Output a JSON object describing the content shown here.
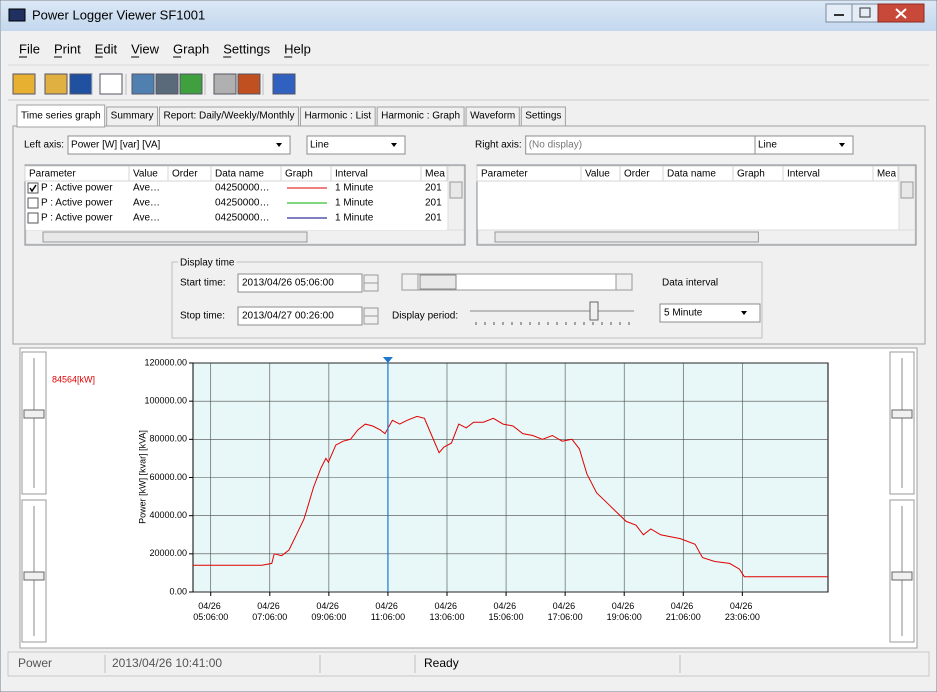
{
  "window": {
    "title": "Power Logger Viewer SF1001"
  },
  "menu": [
    "File",
    "Print",
    "Edit",
    "View",
    "Graph",
    "Settings",
    "Help"
  ],
  "tabs": [
    "Time series graph",
    "Summary",
    "Report: Daily/Weekly/Monthly",
    "Harmonic : List",
    "Harmonic : Graph",
    "Waveform",
    "Settings"
  ],
  "active_tab": 0,
  "left_axis": {
    "label": "Left axis:",
    "select": "Power [W] [var] [VA]",
    "style": "Line"
  },
  "right_axis": {
    "label": "Right axis:",
    "select": "(No display)",
    "style": "Line"
  },
  "left_table": {
    "columns": [
      "Parameter",
      "Value",
      "Order",
      "Data name",
      "Graph",
      "Interval",
      "Mea"
    ],
    "rows": [
      {
        "checked": true,
        "parameter": "P : Active power",
        "value": "Ave…",
        "data_name": "04250000…",
        "color": "#e00000",
        "interval": "1 Minute",
        "mea": "201"
      },
      {
        "checked": false,
        "parameter": "P : Active power",
        "value": "Ave…",
        "data_name": "04250000…",
        "color": "#00b000",
        "interval": "1 Minute",
        "mea": "201"
      },
      {
        "checked": false,
        "parameter": "P : Active power",
        "value": "Ave…",
        "data_name": "04250000…",
        "color": "#000080",
        "interval": "1 Minute",
        "mea": "201"
      }
    ]
  },
  "right_table": {
    "columns": [
      "Parameter",
      "Value",
      "Order",
      "Data name",
      "Graph",
      "Interval",
      "Mea"
    ]
  },
  "display_time": {
    "title": "Display time",
    "start_label": "Start time:",
    "start": "2013/04/26 05:06:00",
    "stop_label": "Stop time:",
    "stop": "2013/04/27 00:26:00",
    "period_label": "Display period:",
    "interval_label": "Data interval",
    "interval": "5 Minute"
  },
  "chart_data": {
    "type": "line",
    "ylabel": "Power [kW] [kvar] [kVA]",
    "color": "#e00000",
    "background": "#e8f8f8",
    "grid": true,
    "xlim": [
      "04/26 04:30:00",
      "04/27 02:00:00"
    ],
    "xticks": [
      "04/26 05:06:00",
      "04/26 07:06:00",
      "04/26 09:06:00",
      "04/26 11:06:00",
      "04/26 13:06:00",
      "04/26 15:06:00",
      "04/26 17:06:00",
      "04/26 19:06:00",
      "04/26 21:06:00",
      "04/26 23:06:00"
    ],
    "ylim": [
      0,
      120000
    ],
    "yticks": [
      {
        "value": 0,
        "label": "0.00"
      },
      {
        "value": 20000,
        "label": "20000.00"
      },
      {
        "value": 40000,
        "label": "40000.00"
      },
      {
        "value": 60000,
        "label": "60000.00"
      },
      {
        "value": 80000,
        "label": "80000.00"
      },
      {
        "value": 100000,
        "label": "100000.00"
      },
      {
        "value": 120000,
        "label": "120000.00"
      }
    ],
    "x": [
      "04/26 04:30:00",
      "04/26 06:50:00",
      "04/26 07:10:00",
      "04/26 07:15:00",
      "04/26 07:30:00",
      "04/26 07:45:00",
      "04/26 08:00:00",
      "04/26 08:15:00",
      "04/26 08:20:00",
      "04/26 08:35:00",
      "04/26 08:50:00",
      "04/26 09:00:00",
      "04/26 09:05:00",
      "04/26 09:20:00",
      "04/26 09:35:00",
      "04/26 09:50:00",
      "04/26 10:05:00",
      "04/26 10:20:00",
      "04/26 10:35:00",
      "04/26 10:50:00",
      "04/26 11:00:00",
      "04/26 11:15:00",
      "04/26 11:30:00",
      "04/26 11:45:00",
      "04/26 12:05:00",
      "04/26 12:20:00",
      "04/26 12:35:00",
      "04/26 12:50:00",
      "04/26 13:00:00",
      "04/26 13:15:00",
      "04/26 13:30:00",
      "04/26 13:45:00",
      "04/26 14:00:00",
      "04/26 14:20:00",
      "04/26 14:40:00",
      "04/26 15:00:00",
      "04/26 15:20:00",
      "04/26 15:40:00",
      "04/26 16:00:00",
      "04/26 16:20:00",
      "04/26 16:40:00",
      "04/26 17:00:00",
      "04/26 17:20:00",
      "04/26 17:35:00",
      "04/26 17:50:00",
      "04/26 18:10:00",
      "04/26 18:30:00",
      "04/26 18:50:00",
      "04/26 19:10:00",
      "04/26 19:30:00",
      "04/26 19:45:00",
      "04/26 20:00:00",
      "04/26 20:20:00",
      "04/26 20:40:00",
      "04/26 21:00:00",
      "04/26 21:30:00",
      "04/26 21:45:00",
      "04/26 22:10:00",
      "04/26 22:40:00",
      "04/26 23:00:00",
      "04/26 23:10:00",
      "04/27 02:00:00"
    ],
    "values": [
      14000,
      14000,
      15000,
      20000,
      19000,
      22000,
      30000,
      38000,
      42000,
      55000,
      65000,
      70000,
      68000,
      77000,
      79000,
      80000,
      85000,
      88000,
      87000,
      85000,
      83000,
      90000,
      88000,
      90000,
      92000,
      91000,
      82000,
      73000,
      76000,
      78000,
      88000,
      86000,
      89000,
      89000,
      91000,
      88000,
      87000,
      83000,
      82000,
      80000,
      82000,
      79000,
      80000,
      75000,
      62000,
      52000,
      47000,
      42000,
      37000,
      35000,
      30000,
      33000,
      30000,
      29000,
      28000,
      25000,
      18000,
      16000,
      15000,
      12000,
      8000,
      8000
    ],
    "cursor": {
      "x": "04/26 11:06:00",
      "label": "84564[kW]"
    }
  },
  "status": [
    "Power",
    "2013/04/26 10:41:00",
    "Ready"
  ]
}
